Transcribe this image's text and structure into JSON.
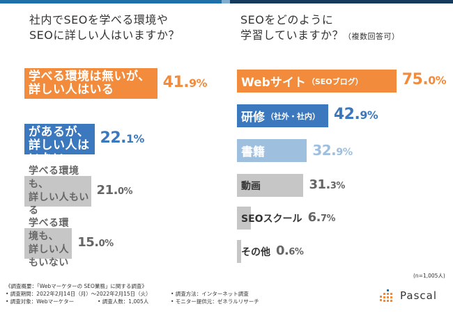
{
  "colors": {
    "orange": "#f28b3c",
    "blue": "#3b78bd",
    "lightblue": "#9fbfdf",
    "gray": "#c6c6c6",
    "darkgray": "#666666"
  },
  "left_title": {
    "line1": "社内でSEOを学べる環境や",
    "line2": "SEOに詳しい人はいますか？"
  },
  "right_title": {
    "line1": "SEOをどのように",
    "line2": "学習していますか？",
    "line2_note": "（複数回答可）"
  },
  "chart_data": [
    {
      "type": "bar",
      "title": "社内でSEOを学べる環境やSEOに詳しい人はいますか？",
      "categories": [
        {
          "line1": "学べる環境は無いが、",
          "line2": "詳しい人はいる"
        },
        {
          "line1": "学べる環境があるが、",
          "line2": "詳しい人はいない"
        },
        {
          "line1": "学べる環境も、",
          "line2": "詳しい人もいる"
        },
        {
          "line1": "学べる環境も、",
          "line2": "詳しい人もいない"
        }
      ],
      "values": [
        41.9,
        22.1,
        21.0,
        15.0
      ],
      "value_labels": [
        {
          "int": "41.",
          "dec": "9%"
        },
        {
          "int": "22.",
          "dec": "1%"
        },
        {
          "int": "21.",
          "dec": "0%"
        },
        {
          "int": "15.",
          "dec": "0%"
        }
      ]
    },
    {
      "type": "bar",
      "title": "SEOをどのように学習していますか？（複数回答可）",
      "categories": [
        {
          "main": "Webサイト",
          "note": "（SEOブログ）"
        },
        {
          "main": "研修",
          "note": "（社外・社内）"
        },
        {
          "main": "書籍",
          "note": ""
        },
        {
          "main": "動画",
          "note": ""
        },
        {
          "main": "SEOスクール",
          "note": ""
        },
        {
          "main": "その他",
          "note": ""
        }
      ],
      "values": [
        75.0,
        42.9,
        32.9,
        31.3,
        6.7,
        0.6
      ],
      "value_labels": [
        {
          "int": "75.",
          "dec": "0%"
        },
        {
          "int": "42.",
          "dec": "9%"
        },
        {
          "int": "32.",
          "dec": "9%"
        },
        {
          "int": "31.",
          "dec": "3%"
        },
        {
          "int": "6.",
          "dec": "7%"
        },
        {
          "int": "0.",
          "dec": "6%"
        }
      ],
      "sample_size": "(n=1,005人)"
    }
  ],
  "notes": {
    "overview": "《調査概要：「Webマーケターの SEO業務」に関する調査》",
    "period": "• 調査期間：2022年2月14日（月）〜2022年2月15日（火）",
    "target": "• 調査対象：Webマーケター",
    "count": "• 調査人数：1,005人",
    "method": "• 調査方法：インターネット調査",
    "provider": "• モニター提供元：ゼネラルリサーチ"
  },
  "logo": {
    "text": "Pascal"
  }
}
